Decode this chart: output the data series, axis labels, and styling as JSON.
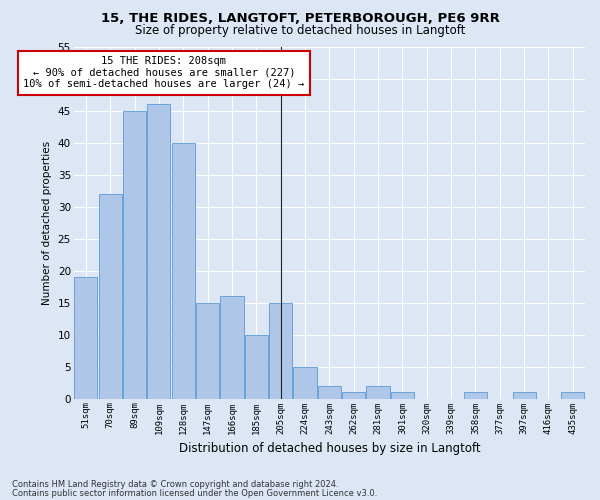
{
  "title": "15, THE RIDES, LANGTOFT, PETERBOROUGH, PE6 9RR",
  "subtitle": "Size of property relative to detached houses in Langtoft",
  "xlabel": "Distribution of detached houses by size in Langtoft",
  "ylabel": "Number of detached properties",
  "categories": [
    "51sqm",
    "70sqm",
    "89sqm",
    "109sqm",
    "128sqm",
    "147sqm",
    "166sqm",
    "185sqm",
    "205sqm",
    "224sqm",
    "243sqm",
    "262sqm",
    "281sqm",
    "301sqm",
    "320sqm",
    "339sqm",
    "358sqm",
    "377sqm",
    "397sqm",
    "416sqm",
    "435sqm"
  ],
  "values": [
    19,
    32,
    45,
    46,
    40,
    15,
    16,
    10,
    15,
    5,
    2,
    1,
    2,
    1,
    0,
    0,
    1,
    0,
    1,
    0,
    1
  ],
  "bar_color": "#aec6e8",
  "bar_edge_color": "#5b9bd5",
  "highlight_line_index": 8,
  "annotation_text": "15 THE RIDES: 208sqm\n← 90% of detached houses are smaller (227)\n10% of semi-detached houses are larger (24) →",
  "annotation_box_color": "#ffffff",
  "annotation_box_edge_color": "#cc0000",
  "background_color": "#dce6f5",
  "grid_color": "#ffffff",
  "ylim": [
    0,
    55
  ],
  "yticks": [
    0,
    5,
    10,
    15,
    20,
    25,
    30,
    35,
    40,
    45,
    50,
    55
  ],
  "footer_line1": "Contains HM Land Registry data © Crown copyright and database right 2024.",
  "footer_line2": "Contains public sector information licensed under the Open Government Licence v3.0."
}
